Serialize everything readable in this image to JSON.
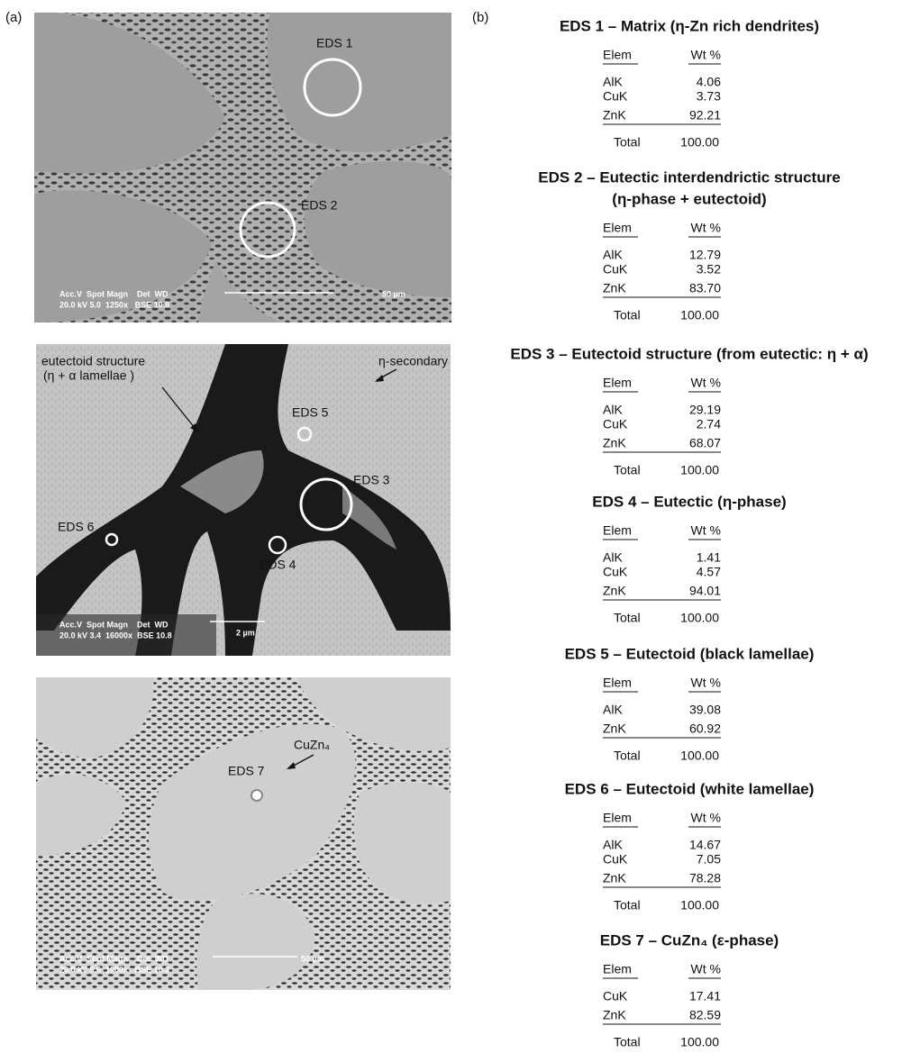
{
  "panel_labels": {
    "a": "(a)",
    "b": "(b)"
  },
  "images": [
    {
      "labels": [
        "EDS 1",
        "EDS 2"
      ],
      "info_header": "Acc.V  Spot Magn    Det  WD",
      "info_values": "20.0 kV 5.0  1250x   BSE 10.8",
      "scale": "50 µm"
    },
    {
      "labels": [
        "eutectoid structure",
        "(η + α lamellae )",
        "η-secondary",
        "EDS 5",
        "EDS 3",
        "EDS 6",
        "EDS 4"
      ],
      "info_header": "Acc.V  Spot Magn    Det  WD",
      "info_values": "20.0 kV 3.4  16000x  BSE 10.8",
      "scale": "2 µm"
    },
    {
      "labels": [
        "CuZn₄",
        "EDS 7"
      ],
      "info_header": "Acc.V  Spot Magn    Det  WD",
      "info_values": "20.0 kV 5.6  1000x   BSE 10.3",
      "scale": "50 µm"
    }
  ],
  "tables": [
    {
      "title": [
        "EDS 1 – Matrix (η-Zn rich dendrites)"
      ],
      "header": [
        "Elem",
        "Wt %"
      ],
      "rows": [
        [
          "AlK",
          "4.06"
        ],
        [
          "CuK",
          "3.73"
        ],
        [
          "ZnK",
          "92.21"
        ]
      ],
      "total": [
        "Total",
        "100.00"
      ]
    },
    {
      "title": [
        "EDS 2 – Eutectic interdendrictic structure",
        "(η-phase + eutectoid)"
      ],
      "header": [
        "Elem",
        "Wt %"
      ],
      "rows": [
        [
          "AlK",
          "12.79"
        ],
        [
          "CuK",
          "3.52"
        ],
        [
          "ZnK",
          "83.70"
        ]
      ],
      "total": [
        "Total",
        "100.00"
      ]
    },
    {
      "title": [
        "EDS 3 – Eutectoid structure (from eutectic: η + α)"
      ],
      "header": [
        "Elem",
        "Wt %"
      ],
      "rows": [
        [
          "AlK",
          "29.19"
        ],
        [
          "CuK",
          "2.74"
        ],
        [
          "ZnK",
          "68.07"
        ]
      ],
      "total": [
        "Total",
        "100.00"
      ]
    },
    {
      "title": [
        "EDS 4 – Eutectic (η-phase)"
      ],
      "header": [
        "Elem",
        "Wt %"
      ],
      "rows": [
        [
          "AlK",
          "1.41"
        ],
        [
          "CuK",
          "4.57"
        ],
        [
          "ZnK",
          "94.01"
        ]
      ],
      "total": [
        "Total",
        "100.00"
      ]
    },
    {
      "title": [
        "EDS 5 – Eutectoid (black lamellae)"
      ],
      "header": [
        "Elem",
        "Wt %"
      ],
      "rows": [
        [
          "AlK",
          "39.08"
        ],
        [
          "ZnK",
          "60.92"
        ]
      ],
      "total": [
        "Total",
        "100.00"
      ]
    },
    {
      "title": [
        "EDS 6 – Eutectoid (white lamellae)"
      ],
      "header": [
        "Elem",
        "Wt %"
      ],
      "rows": [
        [
          "AlK",
          "14.67"
        ],
        [
          "CuK",
          "7.05"
        ],
        [
          "ZnK",
          "78.28"
        ]
      ],
      "total": [
        "Total",
        "100.00"
      ]
    },
    {
      "title": [
        "EDS 7 – CuZn₄ (ε-phase)"
      ],
      "header": [
        "Elem",
        "Wt %"
      ],
      "rows": [
        [
          "CuK",
          "17.41"
        ],
        [
          "ZnK",
          "82.59"
        ]
      ],
      "total": [
        "Total",
        "100.00"
      ]
    }
  ]
}
